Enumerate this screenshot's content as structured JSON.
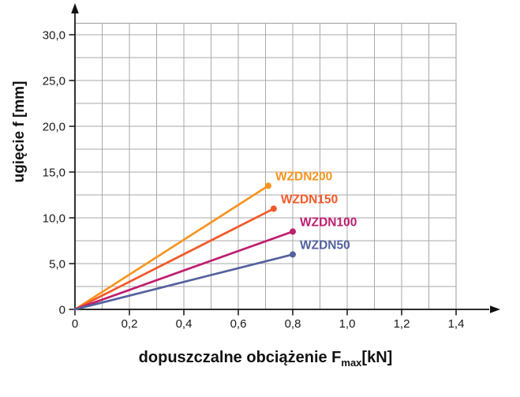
{
  "chart_data": {
    "type": "line",
    "title": "",
    "ylabel": "ugięcie f [mm]",
    "xlabel_main": "dopuszczalne obciążenie F",
    "xlabel_sub": "max",
    "xlabel_unit": "[kN]",
    "xlim": [
      0,
      1.4
    ],
    "ylim": [
      0,
      30
    ],
    "grid": {
      "on": true,
      "x_minor_step": 0.1,
      "y_minor_step": 2.5,
      "color": "#a9a9a9"
    },
    "x_ticks": [
      0,
      0.2,
      0.4,
      0.6,
      0.8,
      1.0,
      1.2,
      1.4
    ],
    "x_tick_labels": [
      "0",
      "0,2",
      "0,4",
      "0,6",
      "0,8",
      "1,0",
      "1,2",
      "1,4"
    ],
    "y_ticks": [
      0,
      5,
      10,
      15,
      20,
      25,
      30
    ],
    "y_tick_labels": [
      "0",
      "5,0",
      "10,0",
      "15,0",
      "20,0",
      "25,0",
      "30,0"
    ],
    "axis_color": "#111111",
    "series": [
      {
        "name": "WZDN200",
        "color": "#F7941E",
        "points": [
          [
            0,
            0
          ],
          [
            0.71,
            13.5
          ]
        ]
      },
      {
        "name": "WZDN150",
        "color": "#F1592A",
        "points": [
          [
            0,
            0
          ],
          [
            0.73,
            11.0
          ]
        ]
      },
      {
        "name": "WZDN100",
        "color": "#BE1E6E",
        "points": [
          [
            0,
            0
          ],
          [
            0.8,
            8.5
          ]
        ]
      },
      {
        "name": "WZDN50",
        "color": "#54619E",
        "points": [
          [
            0,
            0
          ],
          [
            0.8,
            6.0
          ]
        ]
      }
    ]
  }
}
